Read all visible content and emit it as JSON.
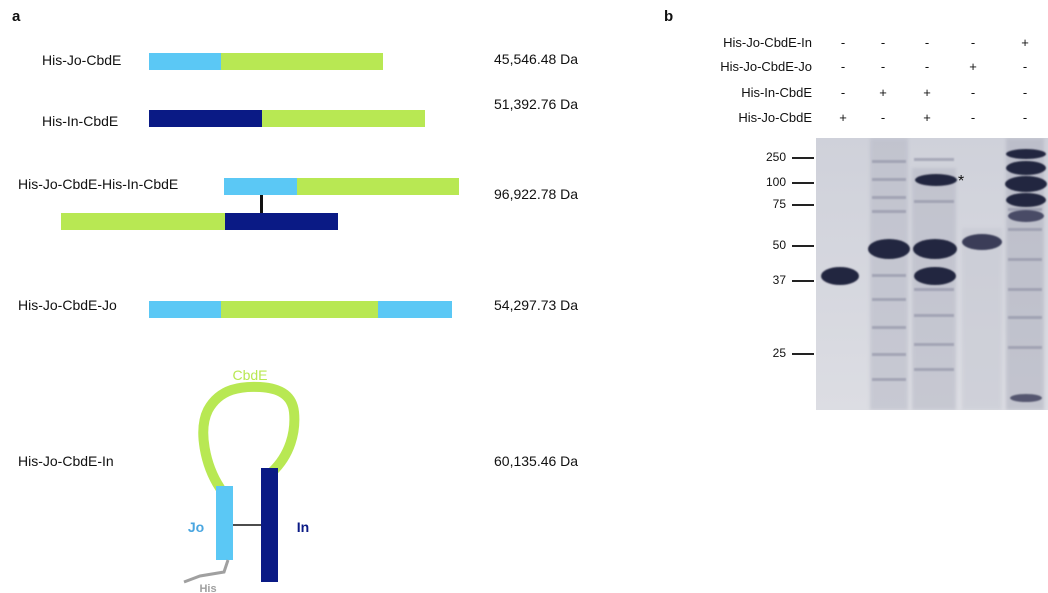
{
  "panel_a": {
    "letter": "a",
    "constructs": [
      {
        "name": "His-Jo-CbdE",
        "mass": "45,546.48 Da"
      },
      {
        "name": "His-In-CbdE",
        "mass": "51,392.76 Da"
      },
      {
        "name": "His-Jo-CbdE-His-In-CbdE",
        "mass": "96,922.78 Da"
      },
      {
        "name": "His-Jo-CbdE-Jo",
        "mass": "54,297.73 Da"
      },
      {
        "name": "His-Jo-CbdE-In",
        "mass": "60,135.46 Da"
      }
    ],
    "loop_diagram": {
      "cbde_label": "CbdE",
      "jo_label": "Jo",
      "in_label": "In",
      "his_label": "His"
    }
  },
  "panel_b": {
    "letter": "b",
    "row_labels": [
      "His-Jo-CbdE-In",
      "His-Jo-CbdE-Jo",
      "His-In-CbdE",
      "His-Jo-CbdE"
    ],
    "signs": [
      [
        "-",
        "-",
        "-",
        "-",
        "+"
      ],
      [
        "-",
        "-",
        "-",
        "+",
        "-"
      ],
      [
        "-",
        "+",
        "+",
        "-",
        "-"
      ],
      [
        "+",
        "-",
        "+",
        "-",
        "-"
      ]
    ],
    "markers": [
      "250",
      "100",
      "75",
      "50",
      "37",
      "25"
    ],
    "star": "*"
  },
  "colors": {
    "jo": "#5bc8f5",
    "cbde": "#b8e853",
    "in": "#0a1a85",
    "his": "#a0a0a0",
    "gel": "#d4d6de"
  }
}
